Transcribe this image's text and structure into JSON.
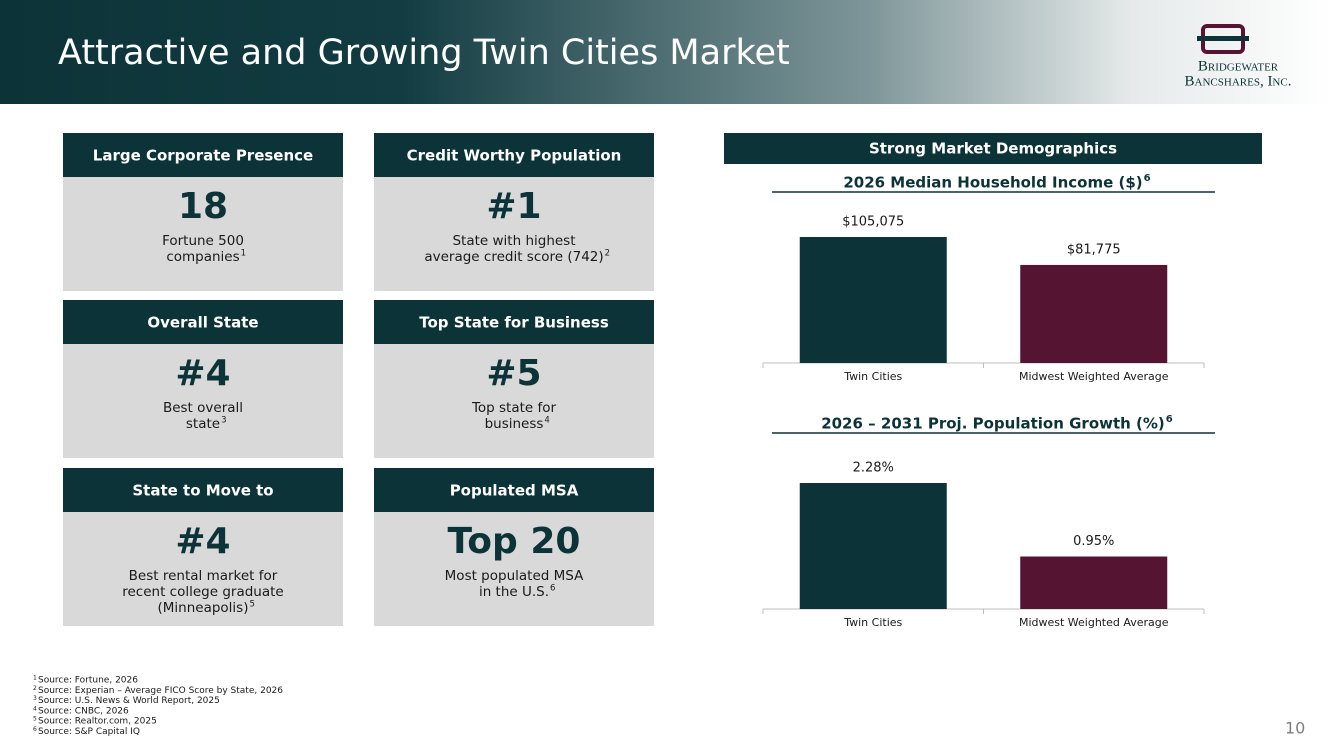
{
  "header": {
    "title": "Attractive and Growing Twin Cities Market"
  },
  "logo": {
    "line1": "Bridgewater",
    "line2": "Bancshares, Inc."
  },
  "tiles": [
    {
      "heading": "Large Corporate Presence",
      "value": "18",
      "lines": [
        "Fortune 500",
        "companies"
      ],
      "sup": "1"
    },
    {
      "heading": "Credit Worthy Population",
      "value": "#1",
      "lines": [
        "State with highest",
        "average credit score (742)"
      ],
      "sup": "2"
    },
    {
      "heading": "Overall State",
      "value": "#4",
      "lines": [
        "Best overall",
        "state"
      ],
      "sup": "3"
    },
    {
      "heading": "Top State for Business",
      "value": "#5",
      "lines": [
        "Top state for",
        "business"
      ],
      "sup": "4"
    },
    {
      "heading": "State to Move to",
      "value": "#4",
      "lines": [
        "Best rental market for",
        "recent college graduate",
        "(Minneapolis)"
      ],
      "sup": "5"
    },
    {
      "heading": "Populated MSA",
      "value": "Top 20",
      "lines": [
        "Most populated MSA",
        "in the U.S."
      ],
      "sup": "6"
    }
  ],
  "panel_title": "Strong Market Demographics",
  "chart_data": [
    {
      "type": "bar",
      "title": "2026 Median Household Income ($)",
      "title_sup": "6",
      "categories": [
        "Twin Cities",
        "Midwest Weighted Average"
      ],
      "values": [
        105075,
        81775
      ],
      "value_labels": [
        "$105,075",
        "$81,775"
      ],
      "colors": [
        "#0c3338",
        "#561433"
      ]
    },
    {
      "type": "bar",
      "title": "2026 – 2031 Proj. Population Growth (%)",
      "title_sup": "6",
      "categories": [
        "Twin Cities",
        "Midwest Weighted Average"
      ],
      "values": [
        2.28,
        0.95
      ],
      "value_labels": [
        "2.28%",
        "0.95%"
      ],
      "colors": [
        "#0c3338",
        "#561433"
      ]
    }
  ],
  "footnotes": [
    {
      "num": "1",
      "text": "Source: Fortune, 2026"
    },
    {
      "num": "2",
      "text": "Source: Experian – Average FICO Score by State, 2026"
    },
    {
      "num": "3",
      "text": "Source: U.S. News & World Report, 2025"
    },
    {
      "num": "4",
      "text": "Source: CNBC, 2026"
    },
    {
      "num": "5",
      "text": "Source: Realtor.com, 2025"
    },
    {
      "num": "6",
      "text": "Source: S&P Capital IQ"
    }
  ],
  "page_number": "10"
}
